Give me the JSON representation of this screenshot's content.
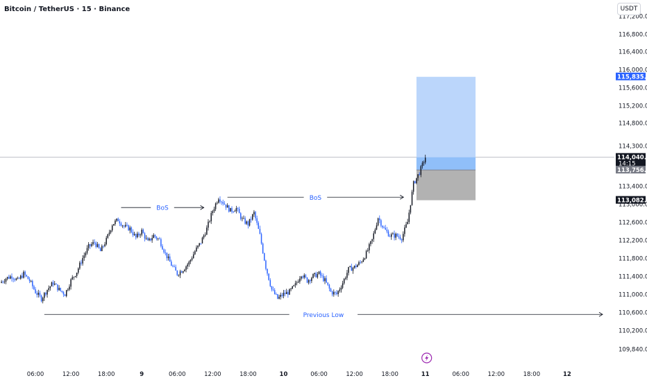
{
  "header": {
    "symbol_title": "Bitcoin / TetherUS · 15 · Binance"
  },
  "price_scale": {
    "currency": "USDT"
  },
  "colors": {
    "up_candle": "#131722",
    "down_candle": "#2962ff",
    "annotation_text": "#2962ff",
    "target_zone": "#bbd6fb",
    "stop_zone": "#b2b2b2",
    "entry_zone": "#90bff9",
    "grid_line": "#e0e3eb",
    "label_target": "#2962ff",
    "label_dark": "#131722",
    "label_gray": "#787b86",
    "marker": "#9c27b0"
  },
  "icons": {
    "bottom_marker": "lightning-bolt-icon"
  },
  "chart_data": {
    "type": "candlestick",
    "ylim": [
      109840,
      117200
    ],
    "y_ticks": [
      "117,200.00",
      "116,800.00",
      "116,400.00",
      "116,000.00",
      "115,600.00",
      "115,200.00",
      "114,800.00",
      "114,300.00",
      "113,400.00",
      "113,000.00",
      "112,600.00",
      "112,200.00",
      "111,800.00",
      "111,400.00",
      "111,000.00",
      "110,600.00",
      "110,200.00",
      "109,840.00"
    ],
    "y_tick_values": [
      117200,
      116800,
      116400,
      116000,
      115600,
      115200,
      114800,
      114300,
      113400,
      113000,
      112600,
      112200,
      111800,
      111400,
      111000,
      110600,
      110200,
      109840
    ],
    "x_range": [
      0,
      104
    ],
    "x_ticks": [
      {
        "label": "06:00",
        "t": 6
      },
      {
        "label": "12:00",
        "t": 12
      },
      {
        "label": "18:00",
        "t": 18
      },
      {
        "label": "9",
        "t": 24
      },
      {
        "label": "06:00",
        "t": 30
      },
      {
        "label": "12:00",
        "t": 36
      },
      {
        "label": "18:00",
        "t": 42
      },
      {
        "label": "10",
        "t": 48
      },
      {
        "label": "06:00",
        "t": 54
      },
      {
        "label": "12:00",
        "t": 60
      },
      {
        "label": "18:00",
        "t": 66
      },
      {
        "label": "11",
        "t": 72
      },
      {
        "label": "06:00",
        "t": 78
      },
      {
        "label": "12:00",
        "t": 84
      },
      {
        "label": "18:00",
        "t": 90
      },
      {
        "label": "12",
        "t": 96
      }
    ],
    "x_ticks_bold": [
      "9",
      "10",
      "11",
      "12"
    ],
    "price_path": [
      [
        0,
        111250
      ],
      [
        1,
        111350
      ],
      [
        2,
        111400
      ],
      [
        3,
        111300
      ],
      [
        4,
        111450
      ],
      [
        5,
        111300
      ],
      [
        6,
        111050
      ],
      [
        7,
        110900
      ],
      [
        8,
        111100
      ],
      [
        9,
        111250
      ],
      [
        10,
        111100
      ],
      [
        11,
        111000
      ],
      [
        12,
        111300
      ],
      [
        13,
        111500
      ],
      [
        14,
        111800
      ],
      [
        15,
        112050
      ],
      [
        16,
        112150
      ],
      [
        17,
        111950
      ],
      [
        18,
        112200
      ],
      [
        19,
        112550
      ],
      [
        20,
        112650
      ],
      [
        21,
        112500
      ],
      [
        22,
        112450
      ],
      [
        23,
        112250
      ],
      [
        24,
        112400
      ],
      [
        25,
        112150
      ],
      [
        26,
        112300
      ],
      [
        27,
        112200
      ],
      [
        28,
        111900
      ],
      [
        29,
        111650
      ],
      [
        30,
        111450
      ],
      [
        31,
        111550
      ],
      [
        32,
        111700
      ],
      [
        33,
        111950
      ],
      [
        34,
        112150
      ],
      [
        35,
        112450
      ],
      [
        36,
        112850
      ],
      [
        37,
        113150
      ],
      [
        38,
        113000
      ],
      [
        39,
        112850
      ],
      [
        40,
        112900
      ],
      [
        41,
        112650
      ],
      [
        42,
        112550
      ],
      [
        43,
        112800
      ],
      [
        44,
        112300
      ],
      [
        45,
        111600
      ],
      [
        46,
        111100
      ],
      [
        47,
        110900
      ],
      [
        48,
        111000
      ],
      [
        49,
        111050
      ],
      [
        50,
        111200
      ],
      [
        51,
        111450
      ],
      [
        52,
        111300
      ],
      [
        53,
        111400
      ],
      [
        54,
        111450
      ],
      [
        55,
        111300
      ],
      [
        56,
        111050
      ],
      [
        57,
        111000
      ],
      [
        58,
        111250
      ],
      [
        59,
        111550
      ],
      [
        60,
        111600
      ],
      [
        61,
        111700
      ],
      [
        62,
        111900
      ],
      [
        63,
        112200
      ],
      [
        64,
        112700
      ],
      [
        65,
        112450
      ],
      [
        66,
        112300
      ],
      [
        67,
        112300
      ],
      [
        68,
        112250
      ],
      [
        69,
        112600
      ],
      [
        70,
        113450
      ],
      [
        71,
        113700
      ],
      [
        72,
        114040
      ]
    ],
    "last_time": 72,
    "current_price": 114040.89,
    "annotations": [
      {
        "text": "BoS",
        "t0": 20.5,
        "t1": 34.5,
        "price": 112920
      },
      {
        "text": "BoS",
        "t0": 38.5,
        "t1": 68.3,
        "price": 113150
      },
      {
        "text": "Previous Low",
        "t0": 7.5,
        "t1": 102,
        "price": 110550
      }
    ],
    "position": {
      "t0": 70.5,
      "t1": 80.5,
      "target": 115835.04,
      "entry": 113756.1,
      "stop": 113082.45
    },
    "price_labels": [
      {
        "text": "115,835.04",
        "price": 115835.04,
        "style": "target"
      },
      {
        "text": "114,040.89",
        "price": 114040.89,
        "style": "dark",
        "sub": "14:15"
      },
      {
        "text": "113,756.10",
        "price": 113756.1,
        "style": "gray"
      },
      {
        "text": "113,082.45",
        "price": 113082.45,
        "style": "dark"
      }
    ]
  }
}
